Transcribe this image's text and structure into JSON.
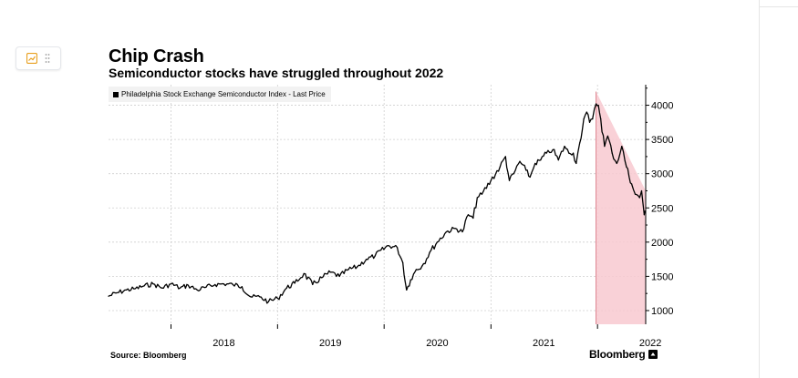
{
  "page": {
    "title": "Chip Crash",
    "subtitle": "Semiconductor stocks have struggled throughout 2022",
    "source": "Source: Bloomberg",
    "brand": "Bloomberg"
  },
  "editor": {
    "chart_icon": "chart-icon",
    "drag_icon": "drag-handle-icon"
  },
  "colors": {
    "line": "#000000",
    "highlight_fill": "#f8c9d0",
    "highlight_edge": "#c0182a",
    "grid": "#cfcfcf",
    "legend_bg": "#f2f2f2",
    "tool_icon": "#e8a020"
  },
  "chart_data": {
    "type": "line",
    "title": "Chip Crash",
    "subtitle": "Semiconductor stocks have struggled throughout 2022",
    "legend": [
      "Philadelphia Stock Exchange Semiconductor Index - Last Price"
    ],
    "legend_position": "top-left",
    "grid": true,
    "x_range": [
      "2017-06-01",
      "2022-06-15"
    ],
    "x_ticks": [
      "2018",
      "2019",
      "2020",
      "2021",
      "2022"
    ],
    "y_range": [
      800,
      4300
    ],
    "y_ticks": [
      1000,
      1500,
      2000,
      2500,
      3000,
      3500,
      4000
    ],
    "y_axis_side": "right",
    "highlight": {
      "shape": "declining wedge",
      "start": "2021-12-27",
      "end": "2022-06-15",
      "top_start": 4200,
      "top_end": 2750
    },
    "series": [
      {
        "name": "Philadelphia Stock Exchange Semiconductor Index - Last Price",
        "points": [
          [
            "2017-06-01",
            1210
          ],
          [
            "2017-07-01",
            1260
          ],
          [
            "2017-08-01",
            1300
          ],
          [
            "2017-09-01",
            1320
          ],
          [
            "2017-10-01",
            1360
          ],
          [
            "2017-11-01",
            1390
          ],
          [
            "2017-12-01",
            1330
          ],
          [
            "2018-01-01",
            1390
          ],
          [
            "2018-02-01",
            1330
          ],
          [
            "2018-03-01",
            1370
          ],
          [
            "2018-04-01",
            1300
          ],
          [
            "2018-05-01",
            1340
          ],
          [
            "2018-06-01",
            1380
          ],
          [
            "2018-07-01",
            1390
          ],
          [
            "2018-08-01",
            1380
          ],
          [
            "2018-09-01",
            1350
          ],
          [
            "2018-10-01",
            1200
          ],
          [
            "2018-11-01",
            1200
          ],
          [
            "2018-12-01",
            1130
          ],
          [
            "2019-01-01",
            1180
          ],
          [
            "2019-02-01",
            1330
          ],
          [
            "2019-03-01",
            1400
          ],
          [
            "2019-04-01",
            1540
          ],
          [
            "2019-05-01",
            1380
          ],
          [
            "2019-06-01",
            1480
          ],
          [
            "2019-07-01",
            1560
          ],
          [
            "2019-08-01",
            1500
          ],
          [
            "2019-09-01",
            1600
          ],
          [
            "2019-10-01",
            1640
          ],
          [
            "2019-11-01",
            1750
          ],
          [
            "2019-12-01",
            1800
          ],
          [
            "2020-01-15",
            1950
          ],
          [
            "2020-02-15",
            1920
          ],
          [
            "2020-03-05",
            1700
          ],
          [
            "2020-03-18",
            1300
          ],
          [
            "2020-04-01",
            1450
          ],
          [
            "2020-04-20",
            1600
          ],
          [
            "2020-05-10",
            1650
          ],
          [
            "2020-06-05",
            1850
          ],
          [
            "2020-07-01",
            2000
          ],
          [
            "2020-08-01",
            2150
          ],
          [
            "2020-09-01",
            2200
          ],
          [
            "2020-09-25",
            2150
          ],
          [
            "2020-10-15",
            2400
          ],
          [
            "2020-11-01",
            2350
          ],
          [
            "2020-11-15",
            2650
          ],
          [
            "2020-12-01",
            2700
          ],
          [
            "2021-01-01",
            2900
          ],
          [
            "2021-02-01",
            3100
          ],
          [
            "2021-02-20",
            3250
          ],
          [
            "2021-03-05",
            2900
          ],
          [
            "2021-03-20",
            3000
          ],
          [
            "2021-04-10",
            3180
          ],
          [
            "2021-05-01",
            3050
          ],
          [
            "2021-05-15",
            2950
          ],
          [
            "2021-06-01",
            3150
          ],
          [
            "2021-06-20",
            3200
          ],
          [
            "2021-07-10",
            3300
          ],
          [
            "2021-08-01",
            3350
          ],
          [
            "2021-08-20",
            3200
          ],
          [
            "2021-09-10",
            3400
          ],
          [
            "2021-09-25",
            3300
          ],
          [
            "2021-10-10",
            3300
          ],
          [
            "2021-10-20",
            3150
          ],
          [
            "2021-11-01",
            3450
          ],
          [
            "2021-11-15",
            3800
          ],
          [
            "2021-11-25",
            3900
          ],
          [
            "2021-12-05",
            3750
          ],
          [
            "2021-12-15",
            3800
          ],
          [
            "2021-12-27",
            4020
          ],
          [
            "2022-01-04",
            4000
          ],
          [
            "2022-01-12",
            3800
          ],
          [
            "2022-01-25",
            3400
          ],
          [
            "2022-02-05",
            3550
          ],
          [
            "2022-02-20",
            3300
          ],
          [
            "2022-03-08",
            3150
          ],
          [
            "2022-03-25",
            3400
          ],
          [
            "2022-04-10",
            3100
          ],
          [
            "2022-04-28",
            2850
          ],
          [
            "2022-05-10",
            2700
          ],
          [
            "2022-05-25",
            2650
          ],
          [
            "2022-06-01",
            2750
          ],
          [
            "2022-06-10",
            2400
          ],
          [
            "2022-06-15",
            2450
          ]
        ]
      }
    ]
  }
}
